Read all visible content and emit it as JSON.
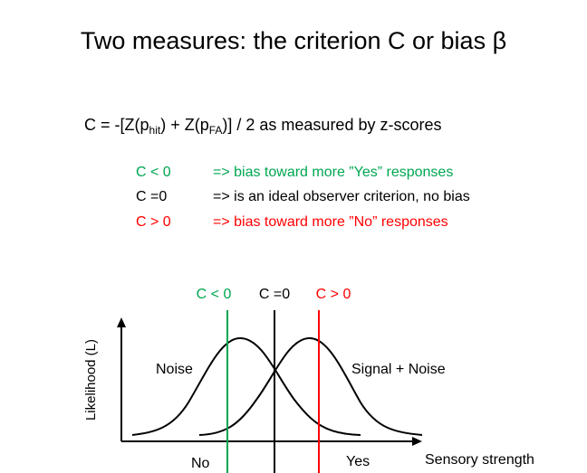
{
  "title": "Two measures: the criterion C or bias β",
  "formula": {
    "prefix": "C = -[Z(p",
    "sub_hit": "hit",
    "middle": ") + Z(p",
    "sub_fa": "FA",
    "suffix": ")] / 2 as measured by z-scores"
  },
  "rules": [
    {
      "condition": "C < 0",
      "description": "=> bias toward more ”Yes” responses",
      "color": "#00a651"
    },
    {
      "condition": "C =0",
      "description": "=> is an ideal observer criterion, no bias",
      "color": "#000000"
    },
    {
      "condition": "C > 0",
      "description": "=> bias toward more ”No” responses",
      "color": "#ff0000"
    }
  ],
  "diagram": {
    "criterion_labels": {
      "left": "C < 0",
      "center": "C =0",
      "right": "C > 0"
    },
    "y_axis_label": "Likelihood (L)",
    "x_axis_label": "Sensory strength",
    "noise_label": "Noise",
    "signal_label": "Signal + Noise",
    "no_label": "No",
    "yes_label": "Yes",
    "colors": {
      "left": "#00a651",
      "center": "#000000",
      "right": "#ff0000"
    }
  }
}
